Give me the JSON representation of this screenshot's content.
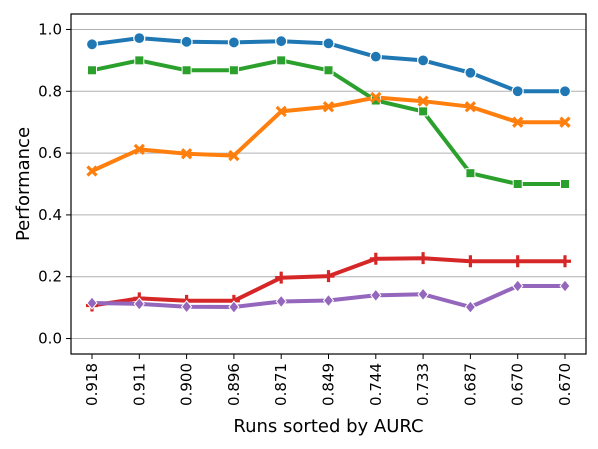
{
  "chart_data": {
    "type": "line",
    "title": "",
    "xlabel": "Runs sorted by AURC",
    "ylabel": "Performance",
    "categories": [
      "0.918",
      "0.911",
      "0.900",
      "0.896",
      "0.871",
      "0.849",
      "0.744",
      "0.733",
      "0.687",
      "0.670",
      "0.670"
    ],
    "yticks": [
      "0.0",
      "0.2",
      "0.4",
      "0.6",
      "0.8",
      "1.0"
    ],
    "ylim": [
      -0.05,
      1.05
    ],
    "grid": "horizontal",
    "legend": "none",
    "series": [
      {
        "color": "#1f77b4",
        "marker": "circle",
        "values": [
          0.952,
          0.972,
          0.96,
          0.958,
          0.962,
          0.955,
          0.912,
          0.9,
          0.86,
          0.8,
          0.8
        ]
      },
      {
        "color": "#2ca02c",
        "marker": "square",
        "values": [
          0.868,
          0.9,
          0.868,
          0.868,
          0.9,
          0.868,
          0.77,
          0.735,
          0.535,
          0.5,
          0.5
        ]
      },
      {
        "color": "#ff7f0e",
        "marker": "x",
        "values": [
          0.542,
          0.612,
          0.598,
          0.592,
          0.735,
          0.75,
          0.78,
          0.768,
          0.75,
          0.7,
          0.7
        ]
      },
      {
        "color": "#d62728",
        "marker": "plus",
        "values": [
          0.107,
          0.13,
          0.122,
          0.122,
          0.197,
          0.202,
          0.258,
          0.26,
          0.25,
          0.25,
          0.25
        ]
      },
      {
        "color": "#9467bd",
        "marker": "diamond",
        "values": [
          0.115,
          0.112,
          0.103,
          0.102,
          0.12,
          0.123,
          0.14,
          0.143,
          0.102,
          0.17,
          0.17
        ]
      }
    ]
  }
}
